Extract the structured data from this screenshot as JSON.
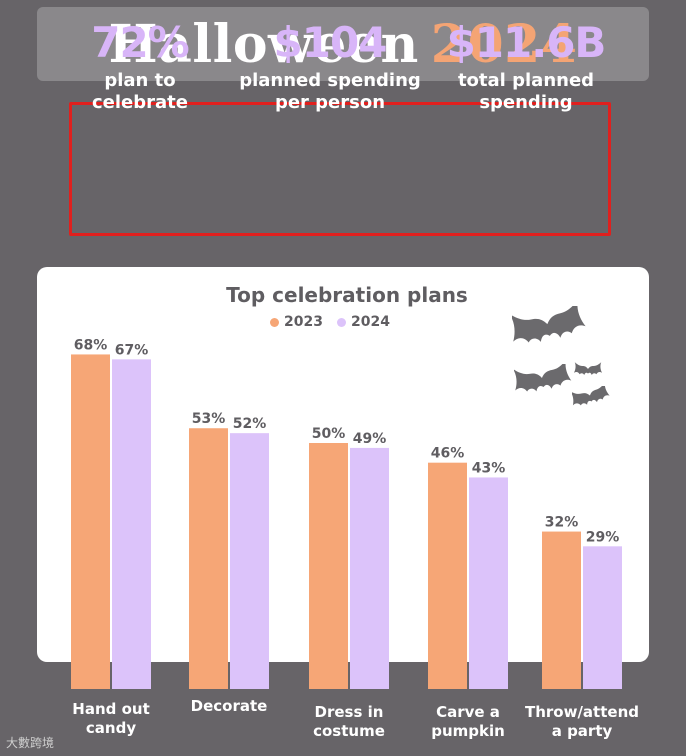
{
  "header": {
    "title_word": "Halloween",
    "title_year": "2024"
  },
  "stats": [
    {
      "value": "72%",
      "label_line1": "plan to",
      "label_line2": "celebrate"
    },
    {
      "value": "$104",
      "label_line1": "planned spending",
      "label_line2": "per person"
    },
    {
      "value": "$11.6B",
      "label_line1": "total planned",
      "label_line2": "spending"
    }
  ],
  "colors": {
    "series_2023": "#f6a676",
    "series_2024": "#dcc3fa",
    "highlight_border": "#e0201e"
  },
  "watermark": "大數跨境",
  "chart_data": {
    "type": "bar",
    "title": "Top celebration plans",
    "categories": [
      [
        "Hand out",
        "candy"
      ],
      [
        "Decorate"
      ],
      [
        "Dress in",
        "costume"
      ],
      [
        "Carve a",
        "pumpkin"
      ],
      [
        "Throw/attend",
        "a party"
      ]
    ],
    "series": [
      {
        "name": "2023",
        "values": [
          68,
          53,
          50,
          46,
          32
        ],
        "labels": [
          "68%",
          "53%",
          "50%",
          "46%",
          "32%"
        ]
      },
      {
        "name": "2024",
        "values": [
          67,
          52,
          49,
          43,
          29
        ],
        "labels": [
          "67%",
          "52%",
          "49%",
          "43%",
          "29%"
        ]
      }
    ],
    "ylim": [
      0,
      100
    ],
    "legend_position": "top-center",
    "grid": false
  }
}
